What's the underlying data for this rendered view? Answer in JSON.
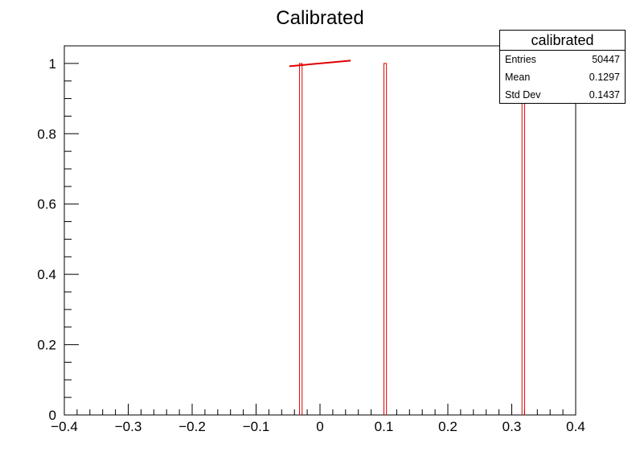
{
  "chart_data": {
    "type": "bar",
    "title": "Calibrated",
    "xlabel": "",
    "ylabel": "",
    "xlim": [
      -0.4,
      0.4
    ],
    "ylim": [
      0,
      1.05
    ],
    "x_ticks": [
      -0.4,
      -0.3,
      -0.2,
      -0.1,
      0,
      0.1,
      0.2,
      0.3,
      0.4
    ],
    "x_tick_labels": [
      "−0.4",
      "−0.3",
      "−0.2",
      "−0.1",
      "0",
      "0.1",
      "0.2",
      "0.3",
      "0.4"
    ],
    "y_ticks": [
      0,
      0.2,
      0.4,
      0.6,
      0.8,
      1
    ],
    "y_tick_labels": [
      "0",
      "0.2",
      "0.4",
      "0.6",
      "0.8",
      "1"
    ],
    "bins": [
      {
        "x_low": -0.032,
        "x_high": -0.028,
        "value": 1
      },
      {
        "x_low": 0.1,
        "x_high": 0.104,
        "value": 1
      },
      {
        "x_low": 0.316,
        "x_high": 0.32,
        "value": 1
      }
    ],
    "overlay_line": {
      "x": [
        -0.048,
        0.048
      ],
      "y": [
        0.992,
        1.008
      ]
    },
    "colors": {
      "histogram": "#e00000",
      "axes": "#000000"
    },
    "grid": false
  },
  "stats": {
    "name": "calibrated",
    "rows": [
      {
        "label": "Entries",
        "value": "50447"
      },
      {
        "label": "Mean",
        "value": "0.1297"
      },
      {
        "label": "Std Dev",
        "value": "0.1437"
      }
    ]
  }
}
